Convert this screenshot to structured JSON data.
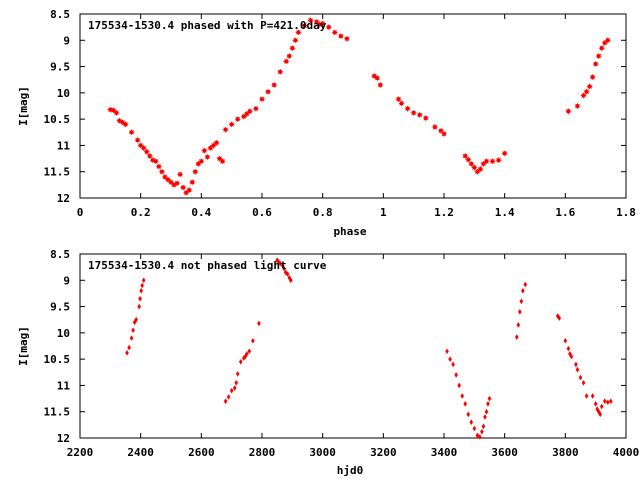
{
  "colors": {
    "points": "#ff0000",
    "axes": "#000000",
    "background": "#ffffff"
  },
  "chart_data": [
    {
      "type": "scatter",
      "title": "175534-1530.4 phased with P=421.0day",
      "xlabel": "phase",
      "ylabel": "I[mag]",
      "xlim": [
        0,
        1.8
      ],
      "ylim": [
        8.5,
        12
      ],
      "y_inverted": true,
      "xticks": [
        "0",
        "0.2",
        "0.4",
        "0.6",
        "0.8",
        "1",
        "1.2",
        "1.4",
        "1.6",
        "1.8"
      ],
      "yticks": [
        "8.5",
        "9",
        "9.5",
        "10",
        "10.5",
        "11",
        "11.5",
        "12"
      ],
      "marker": "star",
      "series": [
        {
          "points": [
            [
              0.1,
              10.32
            ],
            [
              0.11,
              10.33
            ],
            [
              0.12,
              10.38
            ],
            [
              0.13,
              10.53
            ],
            [
              0.14,
              10.56
            ],
            [
              0.15,
              10.6
            ],
            [
              0.17,
              10.75
            ],
            [
              0.19,
              10.9
            ],
            [
              0.2,
              11.0
            ],
            [
              0.21,
              11.05
            ],
            [
              0.22,
              11.12
            ],
            [
              0.23,
              11.2
            ],
            [
              0.24,
              11.28
            ],
            [
              0.25,
              11.3
            ],
            [
              0.26,
              11.4
            ],
            [
              0.27,
              11.5
            ],
            [
              0.28,
              11.6
            ],
            [
              0.29,
              11.65
            ],
            [
              0.3,
              11.7
            ],
            [
              0.31,
              11.75
            ],
            [
              0.32,
              11.72
            ],
            [
              0.33,
              11.55
            ],
            [
              0.34,
              11.8
            ],
            [
              0.35,
              11.9
            ],
            [
              0.36,
              11.85
            ],
            [
              0.37,
              11.7
            ],
            [
              0.38,
              11.5
            ],
            [
              0.39,
              11.35
            ],
            [
              0.4,
              11.3
            ],
            [
              0.41,
              11.1
            ],
            [
              0.42,
              11.22
            ],
            [
              0.43,
              11.05
            ],
            [
              0.44,
              11.0
            ],
            [
              0.45,
              10.95
            ],
            [
              0.46,
              11.25
            ],
            [
              0.47,
              11.3
            ],
            [
              0.48,
              10.7
            ],
            [
              0.5,
              10.6
            ],
            [
              0.52,
              10.5
            ],
            [
              0.54,
              10.45
            ],
            [
              0.55,
              10.4
            ],
            [
              0.56,
              10.35
            ],
            [
              0.58,
              10.3
            ],
            [
              0.6,
              10.12
            ],
            [
              0.62,
              9.98
            ],
            [
              0.64,
              9.85
            ],
            [
              0.66,
              9.6
            ],
            [
              0.68,
              9.4
            ],
            [
              0.69,
              9.3
            ],
            [
              0.7,
              9.15
            ],
            [
              0.71,
              9.0
            ],
            [
              0.72,
              8.85
            ],
            [
              0.74,
              8.72
            ],
            [
              0.76,
              8.62
            ],
            [
              0.78,
              8.65
            ],
            [
              0.79,
              8.7
            ],
            [
              0.8,
              8.68
            ],
            [
              0.82,
              8.75
            ],
            [
              0.84,
              8.85
            ],
            [
              0.86,
              8.92
            ],
            [
              0.88,
              8.97
            ],
            [
              0.97,
              9.68
            ],
            [
              0.98,
              9.72
            ],
            [
              0.99,
              9.85
            ],
            [
              1.05,
              10.12
            ],
            [
              1.06,
              10.2
            ],
            [
              1.08,
              10.3
            ],
            [
              1.1,
              10.38
            ],
            [
              1.12,
              10.42
            ],
            [
              1.14,
              10.48
            ],
            [
              1.17,
              10.65
            ],
            [
              1.19,
              10.72
            ],
            [
              1.2,
              10.78
            ],
            [
              1.27,
              11.2
            ],
            [
              1.28,
              11.27
            ],
            [
              1.29,
              11.35
            ],
            [
              1.3,
              11.42
            ],
            [
              1.31,
              11.5
            ],
            [
              1.32,
              11.45
            ],
            [
              1.33,
              11.35
            ],
            [
              1.34,
              11.3
            ],
            [
              1.36,
              11.3
            ],
            [
              1.38,
              11.28
            ],
            [
              1.4,
              11.15
            ],
            [
              1.61,
              10.35
            ],
            [
              1.64,
              10.25
            ],
            [
              1.66,
              10.05
            ],
            [
              1.67,
              9.98
            ],
            [
              1.68,
              9.88
            ],
            [
              1.69,
              9.7
            ],
            [
              1.7,
              9.45
            ],
            [
              1.71,
              9.3
            ],
            [
              1.72,
              9.15
            ],
            [
              1.73,
              9.05
            ],
            [
              1.74,
              9.0
            ]
          ]
        }
      ]
    },
    {
      "type": "scatter",
      "title": "175534-1530.4 not phased light curve",
      "xlabel": "hjd0",
      "ylabel": "I[mag]",
      "xlim": [
        2200,
        4000
      ],
      "ylim": [
        8.5,
        12
      ],
      "y_inverted": true,
      "xticks": [
        "2200",
        "2400",
        "2600",
        "2800",
        "3000",
        "3200",
        "3400",
        "3600",
        "3800",
        "4000"
      ],
      "yticks": [
        "8.5",
        "9",
        "9.5",
        "10",
        "10.5",
        "11",
        "11.5",
        "12"
      ],
      "marker": "diamond",
      "series": [
        {
          "points": [
            [
              2355,
              10.38
            ],
            [
              2362,
              10.28
            ],
            [
              2370,
              10.1
            ],
            [
              2375,
              9.95
            ],
            [
              2380,
              9.8
            ],
            [
              2385,
              9.75
            ],
            [
              2395,
              9.5
            ],
            [
              2398,
              9.35
            ],
            [
              2402,
              9.2
            ],
            [
              2405,
              9.1
            ],
            [
              2410,
              9.0
            ],
            [
              2680,
              11.3
            ],
            [
              2690,
              11.22
            ],
            [
              2700,
              11.1
            ],
            [
              2710,
              11.05
            ],
            [
              2715,
              10.95
            ],
            [
              2720,
              10.78
            ],
            [
              2730,
              10.55
            ],
            [
              2740,
              10.48
            ],
            [
              2745,
              10.45
            ],
            [
              2750,
              10.4
            ],
            [
              2758,
              10.35
            ],
            [
              2770,
              10.15
            ],
            [
              2790,
              9.82
            ],
            [
              2850,
              8.62
            ],
            [
              2855,
              8.65
            ],
            [
              2860,
              8.68
            ],
            [
              2868,
              8.72
            ],
            [
              2873,
              8.78
            ],
            [
              2878,
              8.85
            ],
            [
              2884,
              8.88
            ],
            [
              2890,
              8.95
            ],
            [
              2895,
              9.0
            ],
            [
              3410,
              10.35
            ],
            [
              3420,
              10.5
            ],
            [
              3430,
              10.6
            ],
            [
              3440,
              10.8
            ],
            [
              3450,
              11.0
            ],
            [
              3460,
              11.2
            ],
            [
              3470,
              11.35
            ],
            [
              3480,
              11.55
            ],
            [
              3490,
              11.7
            ],
            [
              3500,
              11.82
            ],
            [
              3510,
              11.95
            ],
            [
              3518,
              11.98
            ],
            [
              3525,
              11.88
            ],
            [
              3530,
              11.78
            ],
            [
              3535,
              11.6
            ],
            [
              3540,
              11.5
            ],
            [
              3545,
              11.35
            ],
            [
              3550,
              11.25
            ],
            [
              3640,
              10.08
            ],
            [
              3645,
              9.85
            ],
            [
              3650,
              9.6
            ],
            [
              3655,
              9.4
            ],
            [
              3660,
              9.2
            ],
            [
              3668,
              9.08
            ],
            [
              3775,
              9.68
            ],
            [
              3780,
              9.72
            ],
            [
              3800,
              10.15
            ],
            [
              3810,
              10.3
            ],
            [
              3815,
              10.4
            ],
            [
              3820,
              10.45
            ],
            [
              3835,
              10.6
            ],
            [
              3840,
              10.7
            ],
            [
              3850,
              10.85
            ],
            [
              3860,
              10.95
            ],
            [
              3870,
              11.2
            ],
            [
              3890,
              11.2
            ],
            [
              3900,
              11.35
            ],
            [
              3905,
              11.45
            ],
            [
              3910,
              11.5
            ],
            [
              3915,
              11.55
            ],
            [
              3920,
              11.4
            ],
            [
              3930,
              11.3
            ],
            [
              3940,
              11.32
            ],
            [
              3950,
              11.3
            ]
          ]
        }
      ]
    }
  ]
}
